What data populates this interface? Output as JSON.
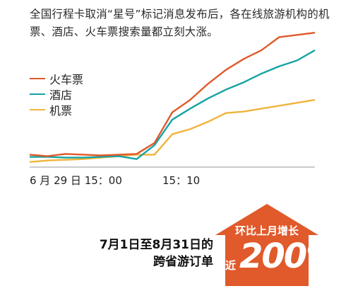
{
  "headline": "全国行程卡取消“星号”标记消息发布后，各在线旅游机构的机票、酒店、火车票搜索量都立刻大涨。",
  "chart_data": {
    "type": "line",
    "x": [
      0,
      1,
      2,
      3,
      4,
      5,
      6,
      7,
      8,
      9,
      10,
      11,
      12,
      13,
      14,
      15,
      16
    ],
    "xticks": [
      "6 月 29 日 15：00",
      "15：10"
    ],
    "series": [
      {
        "name": "火车票",
        "color": "#e05a2b",
        "values": [
          7,
          5,
          8,
          7,
          6,
          7,
          8,
          23,
          65,
          82,
          104,
          123,
          138,
          150,
          168,
          171,
          174
        ]
      },
      {
        "name": "酒店",
        "color": "#17a3a3",
        "values": [
          4,
          4,
          3,
          3,
          4,
          5,
          1,
          20,
          55,
          70,
          84,
          96,
          106,
          118,
          128,
          136,
          150
        ]
      },
      {
        "name": "机票",
        "color": "#f0b43c",
        "values": [
          -3,
          -1,
          0,
          1,
          3,
          5,
          7,
          7,
          35,
          42,
          52,
          64,
          66,
          70,
          74,
          78,
          82
        ]
      }
    ],
    "ylim": [
      -10,
      180
    ]
  },
  "callout": {
    "line1": "7月1日至8月31日的",
    "line2": "跨省游订单",
    "growth_label": "环比上月增长",
    "near": "近",
    "value": "200%",
    "color": "#e05a2b"
  }
}
